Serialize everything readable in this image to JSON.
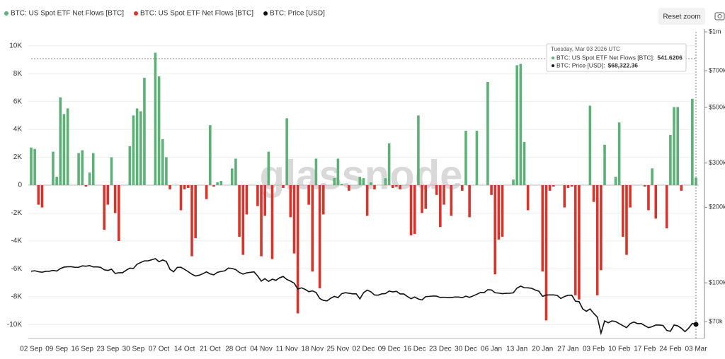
{
  "chart_data": {
    "type": "bar-line",
    "watermark": "glassnode",
    "reset_button": "Reset zoom",
    "categories": [
      "02 Sep",
      null,
      null,
      null,
      null,
      null,
      null,
      "09 Sep",
      null,
      null,
      null,
      null,
      null,
      null,
      "16 Sep",
      null,
      null,
      null,
      null,
      null,
      null,
      "23 Sep",
      null,
      null,
      null,
      null,
      null,
      null,
      "30 Sep",
      null,
      null,
      null,
      null,
      null,
      null,
      "07 Oct",
      null,
      null,
      null,
      null,
      null,
      null,
      "14 Oct",
      null,
      null,
      null,
      null,
      null,
      null,
      "21 Oct",
      null,
      null,
      null,
      null,
      null,
      null,
      "28 Oct",
      null,
      null,
      null,
      null,
      null,
      null,
      "04 Nov",
      null,
      null,
      null,
      null,
      null,
      null,
      "11 Nov",
      null,
      null,
      null,
      null,
      null,
      null,
      "18 Nov",
      null,
      null,
      null,
      null,
      null,
      null,
      "25 Nov",
      null,
      null,
      null,
      null,
      null,
      null,
      "02 Dec",
      null,
      null,
      null,
      null,
      null,
      null,
      "09 Dec",
      null,
      null,
      null,
      null,
      null,
      null,
      "16 Dec",
      null,
      null,
      null,
      null,
      null,
      null,
      "23 Dec",
      null,
      null,
      null,
      null,
      null,
      null,
      "30 Dec",
      null,
      null,
      null,
      null,
      null,
      null,
      "06 Jan",
      null,
      null,
      null,
      null,
      null,
      null,
      "13 Jan",
      null,
      null,
      null,
      null,
      null,
      null,
      "20 Jan",
      null,
      null,
      null,
      null,
      null,
      null,
      "27 Jan",
      null,
      null,
      null,
      null,
      null,
      null,
      "03 Feb",
      null,
      null,
      null,
      null,
      null,
      null,
      "10 Feb",
      null,
      null,
      null,
      null,
      null,
      null,
      "17 Feb",
      null,
      null,
      null,
      null,
      null,
      null,
      "24 Feb",
      null,
      null,
      null,
      null,
      null,
      null,
      "03 Mar"
    ],
    "series": [
      {
        "name": "BTC: US Spot ETF Net Flows [BTC]",
        "type": "bar",
        "color": "#5cb176",
        "negative_color": "#d9342b",
        "values": [
          2700,
          2600,
          -1400,
          -1600,
          null,
          null,
          2400,
          600,
          6300,
          5100,
          5500,
          null,
          null,
          2300,
          2500,
          -100,
          900,
          2300,
          null,
          null,
          -3200,
          -1400,
          2000,
          -2000,
          -4000,
          null,
          null,
          2800,
          5000,
          5500,
          5300,
          7700,
          null,
          null,
          9500,
          7800,
          3300,
          2000,
          -300,
          null,
          null,
          -1800,
          -300,
          -200,
          -5100,
          -3800,
          null,
          null,
          -1000,
          4300,
          -100,
          200,
          300,
          null,
          null,
          1200,
          1900,
          -3700,
          -5000,
          -2100,
          null,
          null,
          -1500,
          -5100,
          -2200,
          2400,
          -5300,
          null,
          null,
          -200,
          4800,
          -2300,
          -4900,
          -9200,
          null,
          null,
          -1400,
          -6200,
          1900,
          -7400,
          -2100,
          null,
          null,
          500,
          1900,
          100,
          null,
          -400,
          null,
          null,
          600,
          500,
          -2200,
          200,
          -300,
          null,
          null,
          500,
          3000,
          -200,
          -100,
          -300,
          null,
          null,
          -3600,
          -3500,
          5000,
          -2000,
          -1700,
          null,
          null,
          -700,
          -3000,
          -1400,
          null,
          -2200,
          null,
          null,
          -400,
          3900,
          -2300,
          null,
          3900,
          null,
          null,
          7400,
          -700,
          -6400,
          -3900,
          -3700,
          null,
          null,
          400,
          8600,
          8700,
          3100,
          -1800,
          null,
          null,
          null,
          -6200,
          -9700,
          -400,
          -100,
          null,
          null,
          -1600,
          -200,
          -100,
          -7900,
          -8200,
          null,
          null,
          5700,
          -1200,
          -7900,
          -6100,
          2900,
          null,
          null,
          600,
          4500,
          -3700,
          -5000,
          -1600,
          null,
          null,
          null,
          -100,
          -1800,
          1200,
          -2400,
          null,
          null,
          -3100,
          3600,
          5600,
          5600,
          -400,
          null,
          null,
          6200,
          541.6206
        ]
      },
      {
        "name": "BTC: Price [USD]",
        "type": "line",
        "axis": "y2",
        "color": "#111111",
        "values": [
          111200,
          111700,
          110700,
          110200,
          111100,
          111200,
          112100,
          111400,
          113900,
          115500,
          115900,
          115900,
          115300,
          115300,
          116800,
          116500,
          117100,
          115700,
          115700,
          115300,
          112700,
          112000,
          113300,
          109000,
          109700,
          109700,
          112200,
          114400,
          114100,
          118600,
          120500,
          122300,
          122400,
          123500,
          124800,
          121400,
          123300,
          121700,
          113200,
          110700,
          115200,
          115300,
          113100,
          110800,
          108200,
          106500,
          107200,
          108700,
          110600,
          108500,
          107600,
          110100,
          111000,
          111600,
          114500,
          114100,
          112900,
          110000,
          108300,
          109600,
          110100,
          110600,
          106500,
          101600,
          103900,
          101300,
          103400,
          102300,
          104700,
          106000,
          103100,
          101600,
          99700,
          94400,
          95500,
          94200,
          92200,
          92900,
          91500,
          86600,
          85100,
          84700,
          86800,
          88300,
          87300,
          90500,
          91300,
          90900,
          90400,
          90400,
          86300,
          91300,
          93500,
          92100,
          89400,
          89300,
          90400,
          90600,
          92700,
          92000,
          92500,
          90300,
          90300,
          88200,
          86400,
          87800,
          86200,
          85500,
          88100,
          88300,
          88600,
          88500,
          87400,
          87600,
          87300,
          87300,
          87800,
          87800,
          87200,
          88500,
          87500,
          88700,
          90000,
          91500,
          91400,
          93900,
          93700,
          91300,
          91000,
          90500,
          90800,
          90900,
          91200,
          95300,
          97000,
          95600,
          95500,
          95100,
          93600,
          92600,
          88300,
          89400,
          89500,
          89500,
          89100,
          86600,
          88200,
          89200,
          89300,
          84500,
          84100,
          78700,
          77000,
          78700,
          75600,
          73000,
          63000,
          70500,
          69300,
          70500,
          70100,
          68800,
          67500,
          66300,
          68800,
          69800,
          68800,
          68900,
          67500,
          66300,
          66900,
          67900,
          67900,
          67600,
          64600,
          64100,
          67900,
          67400,
          65900,
          63900,
          66000,
          68900,
          68322.36
        ]
      }
    ],
    "ylim": [
      -11000,
      11000
    ],
    "yticks": [
      {
        "value": 10000,
        "label": "10K"
      },
      {
        "value": 8000,
        "label": "8K"
      },
      {
        "value": 6000,
        "label": "6K"
      },
      {
        "value": 4000,
        "label": "4K"
      },
      {
        "value": 2000,
        "label": "2K"
      },
      0,
      {
        "value": -2000,
        "label": "-2K"
      },
      {
        "value": -4000,
        "label": "-4K"
      },
      {
        "value": -6000,
        "label": "-6K"
      },
      {
        "value": -8000,
        "label": "-8K"
      },
      {
        "value": -10000,
        "label": "-10K"
      }
    ],
    "y2lim": [
      60000,
      1000000
    ],
    "y2_log": true,
    "y2ticks": [
      {
        "value": 70000,
        "label": "$70k"
      },
      {
        "value": 100000,
        "label": "$100k"
      },
      {
        "value": 200000,
        "label": "$200k"
      },
      {
        "value": 300000,
        "label": "$300k"
      },
      {
        "value": 500000,
        "label": "$500k"
      },
      {
        "value": 700000,
        "label": "$700k"
      },
      {
        "value": 1000000,
        "label": "$1m"
      }
    ],
    "grid": true,
    "legend": "top-left",
    "tooltip": {
      "date": "Tuesday, Mar 03 2026 UTC",
      "items": [
        {
          "label": "BTC: US Spot ETF Net Flows [BTC]:"
        },
        {
          "label": "BTC: Price [USD]:",
          "value_label": "$68,322.36"
        }
      ]
    }
  }
}
